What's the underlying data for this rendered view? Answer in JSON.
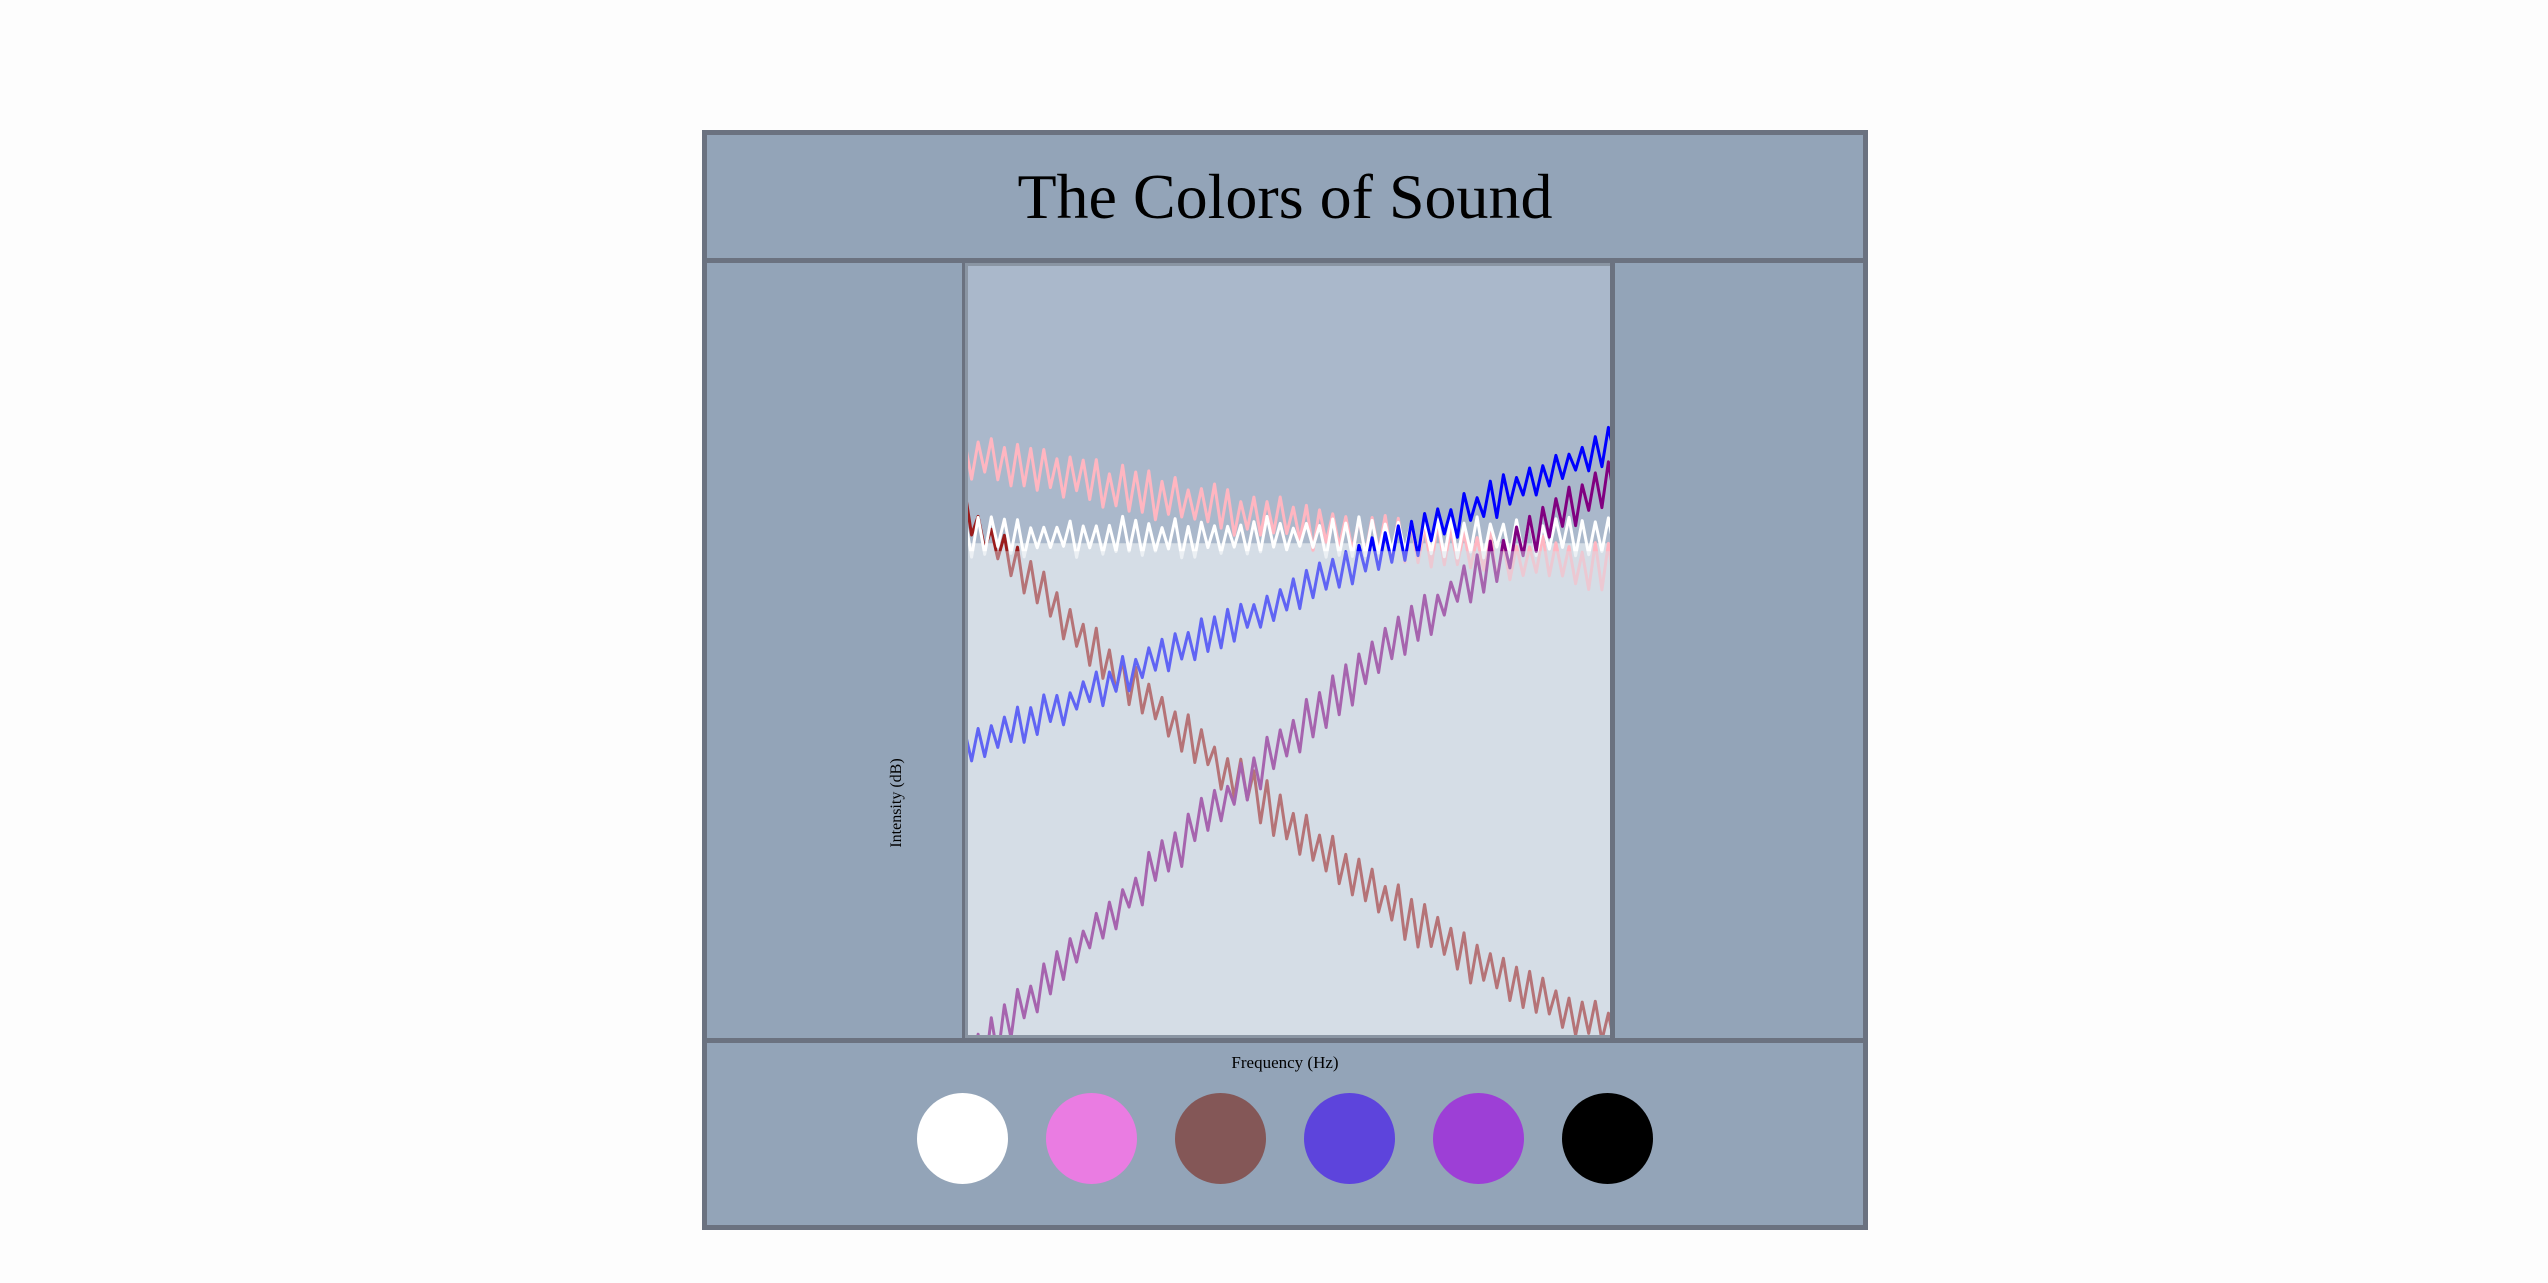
{
  "title": "The Colors of Sound",
  "chart_data": {
    "type": "line",
    "title": "The Colors of Sound",
    "xlabel": "Frequency (Hz)",
    "ylabel": "Intensity (dB)",
    "xlim": [
      0,
      100
    ],
    "ylim": [
      -90,
      40
    ],
    "n_points": 100,
    "series": [
      {
        "key": "pink",
        "color": "#ffb6c1",
        "start": 8,
        "end": -11,
        "curve": "decay",
        "noise": 3
      },
      {
        "key": "brown",
        "color": "#9b1c1c",
        "start": -2,
        "end": -88,
        "curve": "decay",
        "noise": 3
      },
      {
        "key": "white",
        "color": "#ffffff",
        "start": -6,
        "end": -6,
        "curve": "flat",
        "noise": 2.5
      },
      {
        "key": "blue",
        "color": "#0000ff",
        "start": -42,
        "end": 10,
        "curve": "linear",
        "noise": 2.5
      },
      {
        "key": "violet",
        "color": "#800080",
        "start": -95,
        "end": 3,
        "curve": "grow",
        "noise": 3
      }
    ],
    "reference_level": -7,
    "background_above": "#aab8cb",
    "background_below": "#d5dde6"
  },
  "swatches": [
    {
      "name": "white-noise-swatch",
      "color": "#ffffff"
    },
    {
      "name": "pink-noise-swatch",
      "color": "#ea7ce2"
    },
    {
      "name": "brown-noise-swatch",
      "color": "#845757"
    },
    {
      "name": "blue-noise-swatch",
      "color": "#5d44dc"
    },
    {
      "name": "violet-noise-swatch",
      "color": "#9d3fd6"
    },
    {
      "name": "black-noise-swatch",
      "color": "#000000"
    }
  ]
}
